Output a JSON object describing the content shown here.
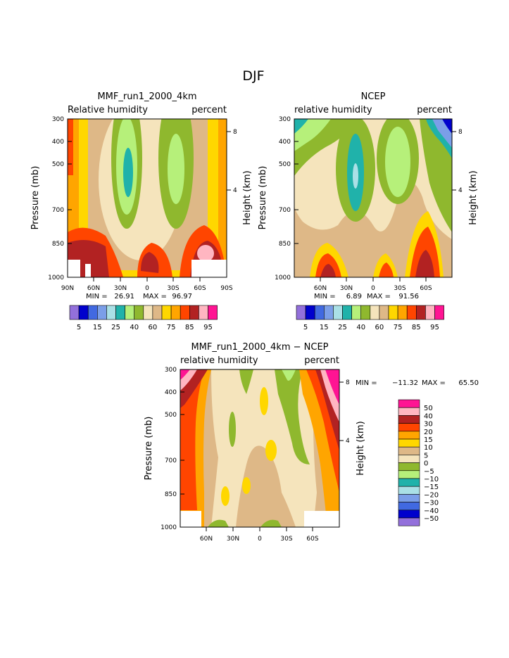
{
  "figure_title": "DJF",
  "colors": {
    "rh": [
      "#9370db",
      "#0000cd",
      "#4169e1",
      "#7b9ee8",
      "#aae0e6",
      "#20b2aa",
      "#b6f07a",
      "#8fb82e",
      "#f5e4bc",
      "#deb887",
      "#ffd700",
      "#ffa500",
      "#ff4500",
      "#b22222",
      "#ffb6c1",
      "#ff1493"
    ],
    "diff": [
      "#9370db",
      "#0000cd",
      "#4169e1",
      "#7b9ee8",
      "#aae0e6",
      "#20b2aa",
      "#b6f07a",
      "#8fb82e",
      "#f5e4bc",
      "#deb887",
      "#ffd700",
      "#ffa500",
      "#ff4500",
      "#b22222",
      "#ffb6c1",
      "#ff1493"
    ]
  },
  "chart_data": [
    {
      "type": "heatmap",
      "title": "MMF_run1_2000_4km",
      "left_label": "Relative humidity",
      "right_label": "percent",
      "ylabel": "Pressure (mb)",
      "ylabel_right": "Height (km)",
      "x_ticks": [
        "90N",
        "60N",
        "30N",
        "0",
        "30S",
        "60S",
        "90S"
      ],
      "y_ticks": [
        "300",
        "400",
        "500",
        "700",
        "850",
        "1000"
      ],
      "y_right_ticks": [
        "8",
        "4"
      ],
      "stats": {
        "min_label": "MIN =",
        "min": "26.91",
        "max_label": "MAX =",
        "max": "96.97"
      },
      "colorbar_labels": [
        "5",
        "15",
        "25",
        "40",
        "60",
        "75",
        "85",
        "95"
      ],
      "legend": "horizontal-bottom",
      "grid": false
    },
    {
      "type": "heatmap",
      "title": "NCEP",
      "left_label": "relative humidity",
      "right_label": "percent",
      "ylabel": "Pressure (mb)",
      "ylabel_right": "Height (km)",
      "x_ticks": [
        "60N",
        "30N",
        "0",
        "30S",
        "60S"
      ],
      "y_ticks": [
        "300",
        "400",
        "500",
        "700",
        "850",
        "1000"
      ],
      "y_right_ticks": [
        "8",
        "4"
      ],
      "stats": {
        "min_label": "MIN =",
        "min": "6.89",
        "max_label": "MAX =",
        "max": "91.56"
      },
      "colorbar_labels": [
        "5",
        "15",
        "25",
        "40",
        "60",
        "75",
        "85",
        "95"
      ],
      "legend": "horizontal-bottom",
      "grid": false
    },
    {
      "type": "heatmap",
      "title": "MMF_run1_2000_4km − NCEP",
      "left_label": "relative humidity",
      "right_label": "percent",
      "ylabel": "Pressure (mb)",
      "ylabel_right": "Height (km)",
      "x_ticks": [
        "60N",
        "30N",
        "0",
        "30S",
        "60S"
      ],
      "y_ticks": [
        "300",
        "400",
        "500",
        "700",
        "850",
        "1000"
      ],
      "y_right_ticks": [
        "8",
        "4"
      ],
      "stats": {
        "min_label": "MIN =",
        "min": "−11.32",
        "max_label": "MAX =",
        "max": "65.50"
      },
      "colorbar_labels": [
        "50",
        "40",
        "30",
        "20",
        "15",
        "10",
        "5",
        "0",
        "−5",
        "−10",
        "−15",
        "−20",
        "−30",
        "−40",
        "−50"
      ],
      "legend": "vertical-right",
      "grid": false
    }
  ]
}
